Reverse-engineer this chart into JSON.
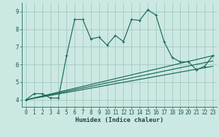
{
  "xlabel": "Humidex (Indice chaleur)",
  "bg_color": "#cce8e2",
  "grid_color": "#a0c8c0",
  "line_color": "#1a6b5a",
  "xlim": [
    -0.5,
    23.5
  ],
  "ylim": [
    3.6,
    9.5
  ],
  "xticks": [
    0,
    1,
    2,
    3,
    4,
    5,
    6,
    7,
    8,
    9,
    10,
    11,
    12,
    13,
    14,
    15,
    16,
    17,
    18,
    19,
    20,
    21,
    22,
    23
  ],
  "yticks": [
    4,
    5,
    6,
    7,
    8,
    9
  ],
  "main_line_x": [
    0,
    1,
    2,
    3,
    4,
    5,
    6,
    7,
    8,
    9,
    10,
    11,
    12,
    13,
    14,
    15,
    16,
    17,
    18,
    19,
    20,
    21,
    22,
    23
  ],
  "main_line_y": [
    4.0,
    4.35,
    4.35,
    4.1,
    4.1,
    6.5,
    8.55,
    8.55,
    7.45,
    7.55,
    7.1,
    7.65,
    7.3,
    8.55,
    8.5,
    9.1,
    8.8,
    7.3,
    6.4,
    6.15,
    6.15,
    5.7,
    5.9,
    6.5
  ],
  "line2_x": [
    0,
    23
  ],
  "line2_y": [
    4.0,
    6.5
  ],
  "line3_x": [
    0,
    23
  ],
  "line3_y": [
    4.0,
    6.2
  ],
  "line4_x": [
    0,
    23
  ],
  "line4_y": [
    4.0,
    5.9
  ]
}
